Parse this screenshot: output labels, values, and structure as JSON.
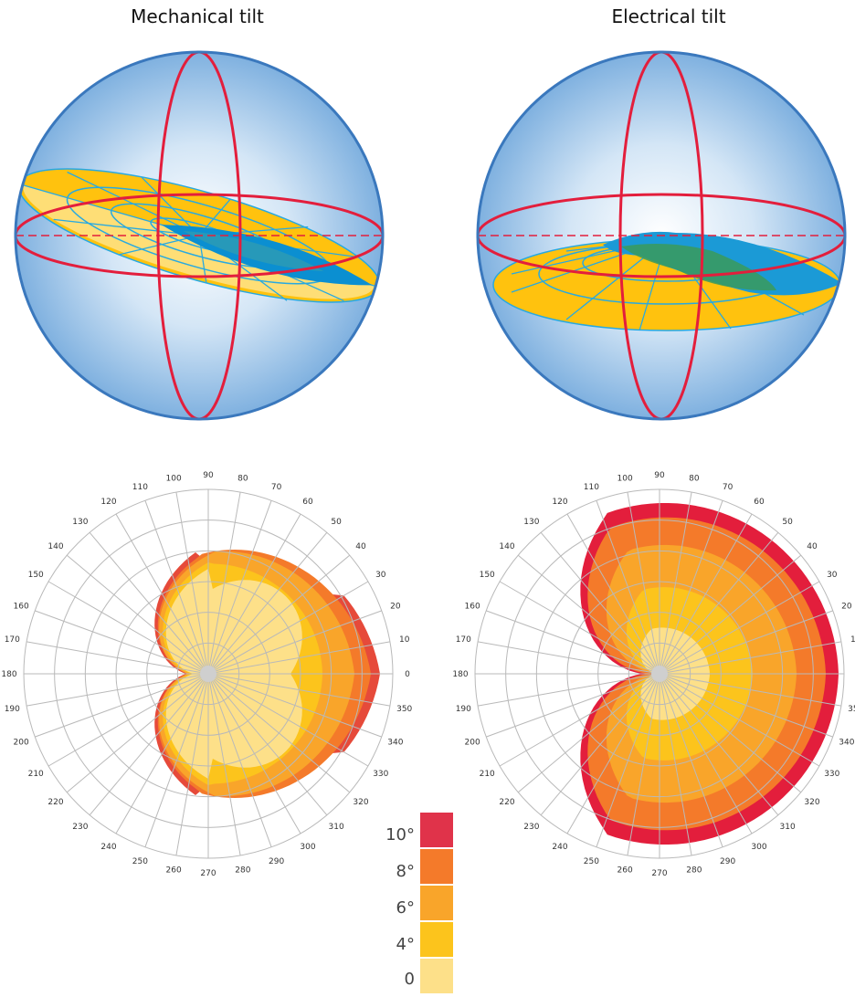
{
  "panels": {
    "left": {
      "title": "Mechanical tilt"
    },
    "right": {
      "title": "Electrical tilt"
    }
  },
  "polar": {
    "angle_labels": [
      "0",
      "10",
      "20",
      "30",
      "40",
      "50",
      "60",
      "70",
      "80",
      "90",
      "100",
      "110",
      "120",
      "130",
      "140",
      "150",
      "160",
      "170",
      "180",
      "190",
      "200",
      "210",
      "220",
      "230",
      "240",
      "250",
      "260",
      "270",
      "280",
      "290",
      "300",
      "310",
      "320",
      "330",
      "340",
      "350"
    ]
  },
  "legend": {
    "items": [
      {
        "label": "10°",
        "color": "#e0334a"
      },
      {
        "label": "8°",
        "color": "#f47a2a"
      },
      {
        "label": "6°",
        "color": "#f9a52a"
      },
      {
        "label": "4°",
        "color": "#fcc41c"
      },
      {
        "label": "0",
        "color": "#fde089"
      }
    ]
  },
  "colors": {
    "sphere_outline": "#3a78bd",
    "axis_red": "#e31e3c",
    "beam_yellow": "#ffc20e",
    "beam_blue": "#1b9ad6",
    "grid_gray": "#bdbdbd"
  }
}
